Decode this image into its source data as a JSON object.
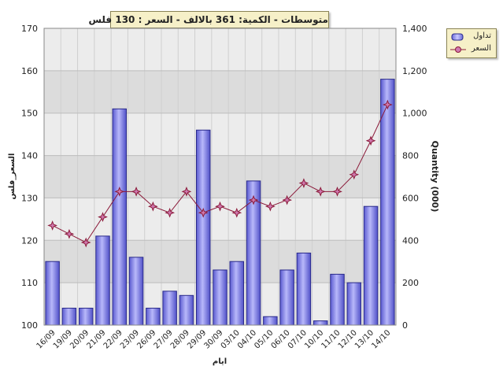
{
  "title": "متوسطات - الكمية: 361 بالالف  - السعر : 130 فلس",
  "legend": {
    "volume_label": "تداول",
    "price_label": "السعر"
  },
  "colors": {
    "bar": "#8484e8",
    "bar_edge": "#2a2a8a",
    "line": "#8b1a3a",
    "marker": "#d07ab0",
    "band_dark": "#dcdcdc",
    "band_light": "#ececec"
  },
  "chart_data": {
    "type": "bar+line",
    "xlabel": "ايام",
    "ylabel_left": "السعر_فلس",
    "ylabel_right": "Quantity (000)",
    "categories": [
      "16/09",
      "19/09",
      "20/09",
      "21/09",
      "22/09",
      "23/09",
      "26/09",
      "27/09",
      "28/09",
      "29/09",
      "30/09",
      "03/10",
      "04/10",
      "05/10",
      "06/10",
      "07/10",
      "10/10",
      "11/10",
      "12/10",
      "13/10",
      "14/10"
    ],
    "ylim_left": [
      100,
      170
    ],
    "yticks_left": [
      "100",
      "110",
      "120",
      "130",
      "140",
      "150",
      "160",
      "170"
    ],
    "ylim_right": [
      0,
      1400
    ],
    "yticks_right": [
      "0",
      "200",
      "400",
      "600",
      "800",
      "1,000",
      "1,200",
      "1,400"
    ],
    "series": [
      {
        "name": "تداول",
        "axis": "right",
        "kind": "bar",
        "values": [
          300,
          80,
          80,
          420,
          1020,
          320,
          80,
          160,
          140,
          920,
          260,
          300,
          680,
          40,
          260,
          340,
          20,
          240,
          200,
          560,
          1160
        ]
      },
      {
        "name": "السعر",
        "axis": "left",
        "kind": "line",
        "values": [
          123.5,
          121.5,
          119.5,
          125.5,
          131.5,
          131.5,
          128,
          126.5,
          131.5,
          126.5,
          128,
          126.5,
          129.5,
          128,
          129.5,
          133.5,
          131.5,
          131.5,
          135.5,
          143.5,
          152
        ]
      }
    ],
    "grid": true,
    "legend_position": "top-right"
  }
}
